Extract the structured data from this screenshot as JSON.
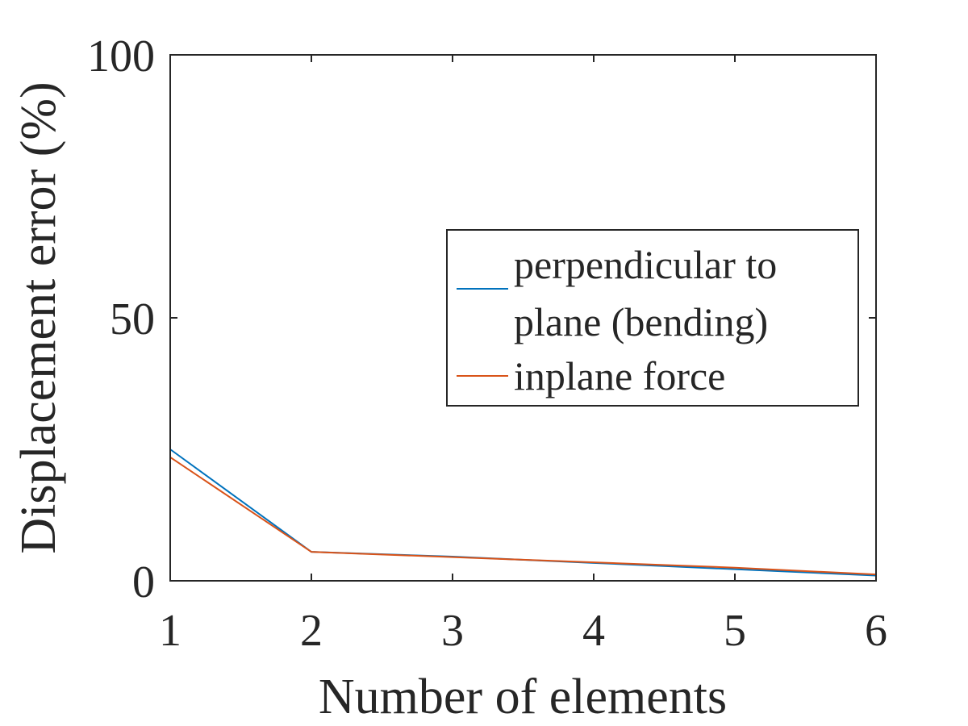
{
  "chart_data": {
    "type": "line",
    "x": [
      1,
      2,
      3,
      4,
      5,
      6
    ],
    "xlabel": "Number of elements",
    "ylabel": "Displacement error (%)",
    "xlim": [
      1,
      6
    ],
    "ylim": [
      0,
      100
    ],
    "xticks": [
      "1",
      "2",
      "3",
      "4",
      "5",
      "6"
    ],
    "yticks": [
      "0",
      "50",
      "100"
    ],
    "grid": false,
    "legend_position": "right",
    "series": [
      {
        "name_lines": [
          "perpendicular to",
          "plane (bending)"
        ],
        "color": "#0072BD",
        "values": [
          25,
          5.5,
          4.6,
          3.4,
          2.2,
          1.0
        ]
      },
      {
        "name_lines": [
          "inplane force"
        ],
        "color": "#D95319",
        "values": [
          23.5,
          5.5,
          4.5,
          3.5,
          2.5,
          1.2
        ]
      }
    ]
  }
}
